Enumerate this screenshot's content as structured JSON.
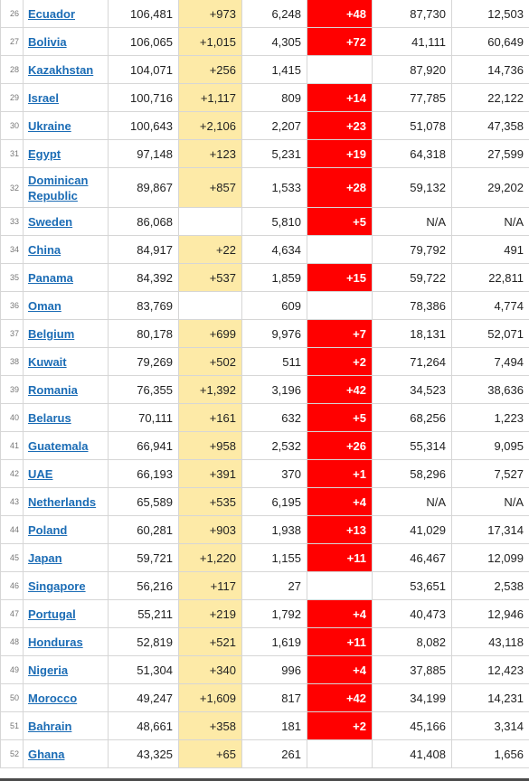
{
  "colors": {
    "new_cases_bg": "#fdeaa7",
    "new_deaths_bg": "#ff0000",
    "link": "#1b6cb5"
  },
  "rows": [
    {
      "num": "26",
      "country": "Ecuador",
      "total": "106,481",
      "new": "+973",
      "deaths": "6,248",
      "new_deaths": "+48",
      "recovered": "87,730",
      "active": "12,503"
    },
    {
      "num": "27",
      "country": "Bolivia",
      "total": "106,065",
      "new": "+1,015",
      "deaths": "4,305",
      "new_deaths": "+72",
      "recovered": "41,111",
      "active": "60,649"
    },
    {
      "num": "28",
      "country": "Kazakhstan",
      "total": "104,071",
      "new": "+256",
      "deaths": "1,415",
      "new_deaths": "",
      "recovered": "87,920",
      "active": "14,736"
    },
    {
      "num": "29",
      "country": "Israel",
      "total": "100,716",
      "new": "+1,117",
      "deaths": "809",
      "new_deaths": "+14",
      "recovered": "77,785",
      "active": "22,122"
    },
    {
      "num": "30",
      "country": "Ukraine",
      "total": "100,643",
      "new": "+2,106",
      "deaths": "2,207",
      "new_deaths": "+23",
      "recovered": "51,078",
      "active": "47,358"
    },
    {
      "num": "31",
      "country": "Egypt",
      "total": "97,148",
      "new": "+123",
      "deaths": "5,231",
      "new_deaths": "+19",
      "recovered": "64,318",
      "active": "27,599"
    },
    {
      "num": "32",
      "country": "Dominican Republic",
      "total": "89,867",
      "new": "+857",
      "deaths": "1,533",
      "new_deaths": "+28",
      "recovered": "59,132",
      "active": "29,202"
    },
    {
      "num": "33",
      "country": "Sweden",
      "total": "86,068",
      "new": "",
      "deaths": "5,810",
      "new_deaths": "+5",
      "recovered": "N/A",
      "active": "N/A"
    },
    {
      "num": "34",
      "country": "China",
      "total": "84,917",
      "new": "+22",
      "deaths": "4,634",
      "new_deaths": "",
      "recovered": "79,792",
      "active": "491"
    },
    {
      "num": "35",
      "country": "Panama",
      "total": "84,392",
      "new": "+537",
      "deaths": "1,859",
      "new_deaths": "+15",
      "recovered": "59,722",
      "active": "22,811"
    },
    {
      "num": "36",
      "country": "Oman",
      "total": "83,769",
      "new": "",
      "deaths": "609",
      "new_deaths": "",
      "recovered": "78,386",
      "active": "4,774"
    },
    {
      "num": "37",
      "country": "Belgium",
      "total": "80,178",
      "new": "+699",
      "deaths": "9,976",
      "new_deaths": "+7",
      "recovered": "18,131",
      "active": "52,071"
    },
    {
      "num": "38",
      "country": "Kuwait",
      "total": "79,269",
      "new": "+502",
      "deaths": "511",
      "new_deaths": "+2",
      "recovered": "71,264",
      "active": "7,494"
    },
    {
      "num": "39",
      "country": "Romania",
      "total": "76,355",
      "new": "+1,392",
      "deaths": "3,196",
      "new_deaths": "+42",
      "recovered": "34,523",
      "active": "38,636"
    },
    {
      "num": "40",
      "country": "Belarus",
      "total": "70,111",
      "new": "+161",
      "deaths": "632",
      "new_deaths": "+5",
      "recovered": "68,256",
      "active": "1,223"
    },
    {
      "num": "41",
      "country": "Guatemala",
      "total": "66,941",
      "new": "+958",
      "deaths": "2,532",
      "new_deaths": "+26",
      "recovered": "55,314",
      "active": "9,095"
    },
    {
      "num": "42",
      "country": "UAE",
      "total": "66,193",
      "new": "+391",
      "deaths": "370",
      "new_deaths": "+1",
      "recovered": "58,296",
      "active": "7,527"
    },
    {
      "num": "43",
      "country": "Netherlands",
      "total": "65,589",
      "new": "+535",
      "deaths": "6,195",
      "new_deaths": "+4",
      "recovered": "N/A",
      "active": "N/A"
    },
    {
      "num": "44",
      "country": "Poland",
      "total": "60,281",
      "new": "+903",
      "deaths": "1,938",
      "new_deaths": "+13",
      "recovered": "41,029",
      "active": "17,314"
    },
    {
      "num": "45",
      "country": "Japan",
      "total": "59,721",
      "new": "+1,220",
      "deaths": "1,155",
      "new_deaths": "+11",
      "recovered": "46,467",
      "active": "12,099"
    },
    {
      "num": "46",
      "country": "Singapore",
      "total": "56,216",
      "new": "+117",
      "deaths": "27",
      "new_deaths": "",
      "recovered": "53,651",
      "active": "2,538"
    },
    {
      "num": "47",
      "country": "Portugal",
      "total": "55,211",
      "new": "+219",
      "deaths": "1,792",
      "new_deaths": "+4",
      "recovered": "40,473",
      "active": "12,946"
    },
    {
      "num": "48",
      "country": "Honduras",
      "total": "52,819",
      "new": "+521",
      "deaths": "1,619",
      "new_deaths": "+11",
      "recovered": "8,082",
      "active": "43,118"
    },
    {
      "num": "49",
      "country": "Nigeria",
      "total": "51,304",
      "new": "+340",
      "deaths": "996",
      "new_deaths": "+4",
      "recovered": "37,885",
      "active": "12,423"
    },
    {
      "num": "50",
      "country": "Morocco",
      "total": "49,247",
      "new": "+1,609",
      "deaths": "817",
      "new_deaths": "+42",
      "recovered": "34,199",
      "active": "14,231"
    },
    {
      "num": "51",
      "country": "Bahrain",
      "total": "48,661",
      "new": "+358",
      "deaths": "181",
      "new_deaths": "+2",
      "recovered": "45,166",
      "active": "3,314"
    },
    {
      "num": "52",
      "country": "Ghana",
      "total": "43,325",
      "new": "+65",
      "deaths": "261",
      "new_deaths": "",
      "recovered": "41,408",
      "active": "1,656"
    }
  ]
}
